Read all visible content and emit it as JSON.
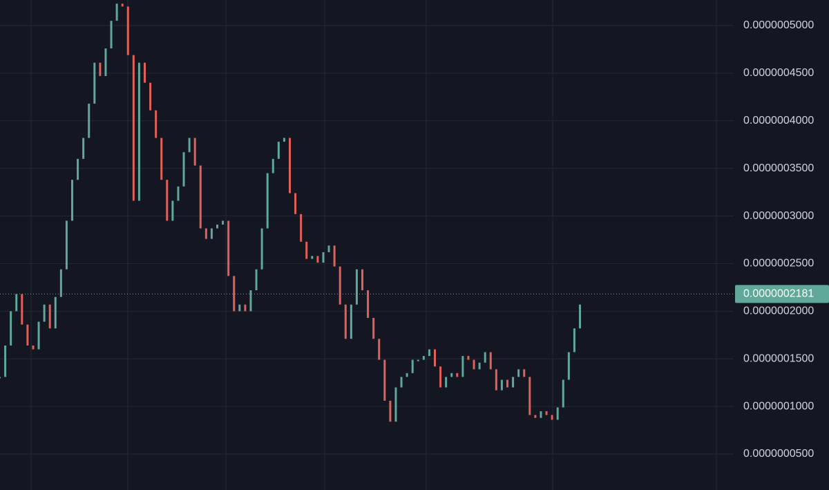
{
  "chart_data": {
    "type": "candlestick-line",
    "series": [
      {
        "up_color": "#5fa89a",
        "down_color": "#e0605a",
        "values": [
          1.31e-07,
          1.64e-07,
          2e-07,
          2.18e-07,
          1.86e-07,
          1.64e-07,
          1.6e-07,
          1.89e-07,
          2.07e-07,
          1.82e-07,
          2.15e-07,
          2.44e-07,
          2.95e-07,
          3.38e-07,
          3.6e-07,
          3.82e-07,
          4.18e-07,
          4.61e-07,
          4.47e-07,
          4.76e-07,
          5.05e-07,
          5.23e-07,
          5.2e-07,
          4.69e-07,
          3.16e-07,
          4.61e-07,
          4.4e-07,
          4.11e-07,
          3.82e-07,
          3.38e-07,
          2.95e-07,
          3.16e-07,
          3.31e-07,
          3.67e-07,
          3.82e-07,
          3.53e-07,
          2.87e-07,
          2.76e-07,
          2.87e-07,
          2.91e-07,
          2.95e-07,
          2.37e-07,
          2e-07,
          2.07e-07,
          2e-07,
          2.22e-07,
          2.44e-07,
          2.87e-07,
          3.45e-07,
          3.6e-07,
          3.78e-07,
          3.82e-07,
          3.24e-07,
          3.02e-07,
          2.73e-07,
          2.55e-07,
          2.58e-07,
          2.51e-07,
          2.62e-07,
          2.69e-07,
          2.47e-07,
          2.07e-07,
          1.71e-07,
          2.07e-07,
          2.44e-07,
          2.22e-07,
          1.93e-07,
          1.71e-07,
          1.49e-07,
          1.06e-07,
          8.4e-08,
          1.2e-07,
          1.31e-07,
          1.35e-07,
          1.49e-07,
          1.49e-07,
          1.53e-07,
          1.6e-07,
          1.42e-07,
          1.2e-07,
          1.31e-07,
          1.35e-07,
          1.31e-07,
          1.53e-07,
          1.49e-07,
          1.39e-07,
          1.46e-07,
          1.57e-07,
          1.39e-07,
          1.17e-07,
          1.28e-07,
          1.2e-07,
          1.31e-07,
          1.39e-07,
          1.31e-07,
          9.1e-08,
          8.8e-08,
          9.5e-08,
          9.1e-08,
          8.6e-08,
          9.9e-08,
          1.28e-07,
          1.57e-07,
          1.82e-07,
          2.07e-07
        ]
      }
    ],
    "last_price": {
      "value": 2.181e-07,
      "label": "0.0000002181",
      "color": "#5fa89a"
    },
    "ylim": [
      1.226e-08,
      5.2685e-07
    ],
    "yticks": [
      {
        "value": 5e-08,
        "label": "0.0000000500"
      },
      {
        "value": 1e-07,
        "label": "0.0000001000"
      },
      {
        "value": 1.5e-07,
        "label": "0.0000001500"
      },
      {
        "value": 2e-07,
        "label": "0.0000002000"
      },
      {
        "value": 2.5e-07,
        "label": "0.0000002500"
      },
      {
        "value": 3e-07,
        "label": "0.0000003000"
      },
      {
        "value": 3.5e-07,
        "label": "0.0000003500"
      },
      {
        "value": 4e-07,
        "label": "0.0000004000"
      },
      {
        "value": 4.5e-07,
        "label": "0.0000004500"
      },
      {
        "value": 5e-07,
        "label": "0.0000005000"
      }
    ],
    "grid": true
  }
}
